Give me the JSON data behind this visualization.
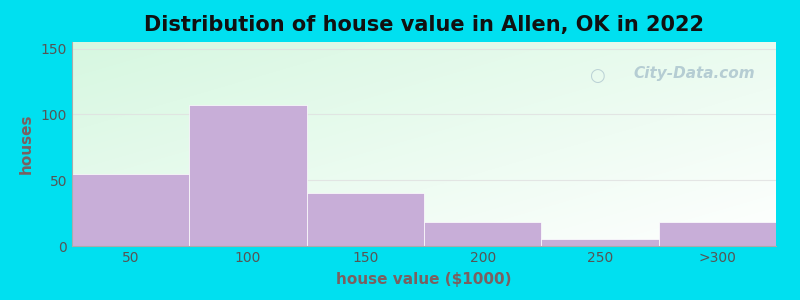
{
  "title": "Distribution of house value in Allen, OK in 2022",
  "xlabel": "house value ($1000)",
  "ylabel": "houses",
  "bar_lefts": [
    0,
    75,
    150,
    225,
    300,
    375
  ],
  "bar_widths": [
    75,
    75,
    75,
    75,
    75,
    75
  ],
  "bar_heights": [
    55,
    107,
    40,
    18,
    5,
    18
  ],
  "bar_color": "#c8aed8",
  "ylim": [
    0,
    155
  ],
  "xlim": [
    0,
    450
  ],
  "yticks": [
    0,
    50,
    100,
    150
  ],
  "xtick_positions": [
    37.5,
    112.5,
    187.5,
    262.5,
    337.5,
    412.5
  ],
  "xtick_labels": [
    "50",
    "100",
    "150",
    "200",
    "250",
    ">300"
  ],
  "background_outer": "#00e0f0",
  "grad_color_topleft": [
    0.84,
    0.97,
    0.88
  ],
  "grad_color_bottomright": [
    1.0,
    1.0,
    1.0
  ],
  "title_fontsize": 15,
  "axis_label_fontsize": 11,
  "tick_fontsize": 10,
  "axis_label_color": "#7a6060",
  "tick_color": "#555555",
  "title_color": "#111111",
  "watermark_text": "City-Data.com",
  "watermark_color": "#b0c8d0",
  "watermark_fontsize": 11,
  "gridline_color": "#e0e0e0",
  "gridline_alpha": 0.8
}
